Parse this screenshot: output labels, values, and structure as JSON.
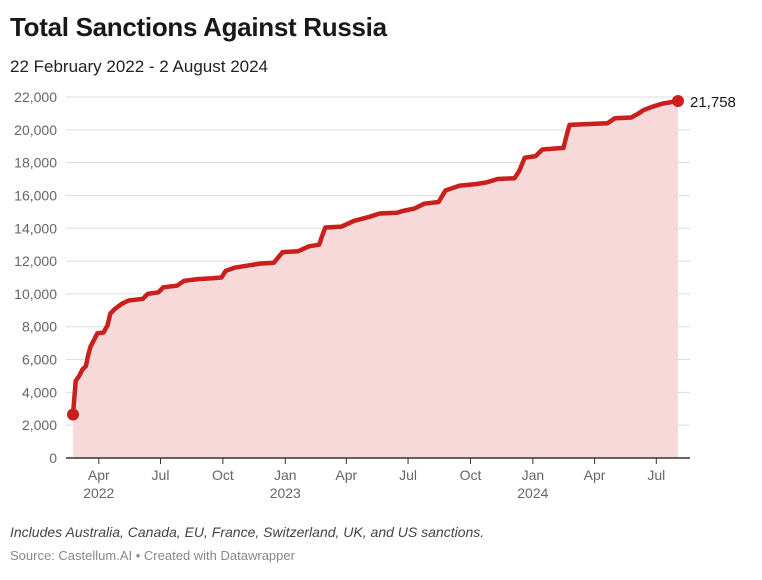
{
  "title": "Total Sanctions Against Russia",
  "subtitle": "22 February 2022 - 2 August 2024",
  "note": "Includes Australia, Canada, EU, France, Switzerland, UK, and US sanctions.",
  "source": {
    "label": "Source: Castellum.AI",
    "separator": "•",
    "credit": "Created with Datawrapper"
  },
  "colors": {
    "line": "#c9201e",
    "fill": "#f6d9d8",
    "grid": "#dddddd",
    "axis": "#333333"
  },
  "chart_data": {
    "type": "area",
    "title": "Total Sanctions Against Russia",
    "xlabel": "",
    "ylabel": "",
    "ylim": [
      0,
      22000
    ],
    "yticks": [
      0,
      2000,
      4000,
      6000,
      8000,
      10000,
      12000,
      14000,
      16000,
      18000,
      20000,
      22000
    ],
    "ytick_labels": [
      "0",
      "2,000",
      "4,000",
      "6,000",
      "8,000",
      "10,000",
      "12,000",
      "14,000",
      "16,000",
      "18,000",
      "20,000",
      "22,000"
    ],
    "xlim": [
      "2022-02-22",
      "2024-08-02"
    ],
    "xticks": [
      {
        "date": "2022-04-01",
        "label": "Apr",
        "year": "2022"
      },
      {
        "date": "2022-07-01",
        "label": "Jul",
        "year": ""
      },
      {
        "date": "2022-10-01",
        "label": "Oct",
        "year": ""
      },
      {
        "date": "2023-01-01",
        "label": "Jan",
        "year": "2023"
      },
      {
        "date": "2023-04-01",
        "label": "Apr",
        "year": ""
      },
      {
        "date": "2023-07-01",
        "label": "Jul",
        "year": ""
      },
      {
        "date": "2023-10-01",
        "label": "Oct",
        "year": ""
      },
      {
        "date": "2024-01-01",
        "label": "Jan",
        "year": "2024"
      },
      {
        "date": "2024-04-01",
        "label": "Apr",
        "year": ""
      },
      {
        "date": "2024-07-01",
        "label": "Jul",
        "year": ""
      }
    ],
    "series": [
      {
        "name": "Total sanctions",
        "points": [
          [
            "2022-02-22",
            2650
          ],
          [
            "2022-02-26",
            4700
          ],
          [
            "2022-03-03",
            5000
          ],
          [
            "2022-03-08",
            5400
          ],
          [
            "2022-03-13",
            5600
          ],
          [
            "2022-03-16",
            6200
          ],
          [
            "2022-03-20",
            6800
          ],
          [
            "2022-03-25",
            7200
          ],
          [
            "2022-03-30",
            7600
          ],
          [
            "2022-04-08",
            7650
          ],
          [
            "2022-04-14",
            8100
          ],
          [
            "2022-04-18",
            8800
          ],
          [
            "2022-04-25",
            9100
          ],
          [
            "2022-05-05",
            9400
          ],
          [
            "2022-05-15",
            9600
          ],
          [
            "2022-06-05",
            9700
          ],
          [
            "2022-06-12",
            10000
          ],
          [
            "2022-06-28",
            10100
          ],
          [
            "2022-07-05",
            10400
          ],
          [
            "2022-07-25",
            10500
          ],
          [
            "2022-08-05",
            10800
          ],
          [
            "2022-08-25",
            10900
          ],
          [
            "2022-09-15",
            10950
          ],
          [
            "2022-09-29",
            11000
          ],
          [
            "2022-10-05",
            11400
          ],
          [
            "2022-10-18",
            11600
          ],
          [
            "2022-11-10",
            11750
          ],
          [
            "2022-11-25",
            11850
          ],
          [
            "2022-12-15",
            11900
          ],
          [
            "2022-12-28",
            12550
          ],
          [
            "2023-01-20",
            12600
          ],
          [
            "2023-02-05",
            12900
          ],
          [
            "2023-02-20",
            13000
          ],
          [
            "2023-02-24",
            13500
          ],
          [
            "2023-03-01",
            14050
          ],
          [
            "2023-03-25",
            14100
          ],
          [
            "2023-04-12",
            14450
          ],
          [
            "2023-05-05",
            14700
          ],
          [
            "2023-05-20",
            14900
          ],
          [
            "2023-06-15",
            14950
          ],
          [
            "2023-06-23",
            15050
          ],
          [
            "2023-07-10",
            15200
          ],
          [
            "2023-07-25",
            15500
          ],
          [
            "2023-08-15",
            15600
          ],
          [
            "2023-08-25",
            16300
          ],
          [
            "2023-09-15",
            16600
          ],
          [
            "2023-10-10",
            16700
          ],
          [
            "2023-10-25",
            16800
          ],
          [
            "2023-11-10",
            17000
          ],
          [
            "2023-12-05",
            17050
          ],
          [
            "2023-12-12",
            17500
          ],
          [
            "2023-12-20",
            18300
          ],
          [
            "2024-01-05",
            18400
          ],
          [
            "2024-01-15",
            18800
          ],
          [
            "2024-02-15",
            18900
          ],
          [
            "2024-02-20",
            19700
          ],
          [
            "2024-02-24",
            20300
          ],
          [
            "2024-03-20",
            20350
          ],
          [
            "2024-04-20",
            20400
          ],
          [
            "2024-05-01",
            20700
          ],
          [
            "2024-05-25",
            20750
          ],
          [
            "2024-06-05",
            21000
          ],
          [
            "2024-06-12",
            21200
          ],
          [
            "2024-06-25",
            21400
          ],
          [
            "2024-07-10",
            21600
          ],
          [
            "2024-08-02",
            21758
          ]
        ]
      }
    ],
    "annotations": [
      {
        "date": "2024-08-02",
        "value": 21758,
        "label": "21,758"
      }
    ]
  }
}
